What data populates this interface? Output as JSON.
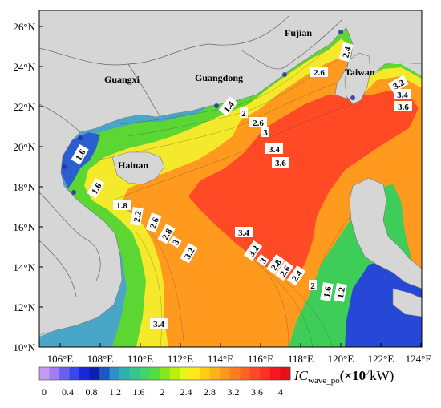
{
  "map": {
    "lat_ticks": [
      "10°N",
      "12°N",
      "14°N",
      "16°N",
      "18°N",
      "20°N",
      "22°N",
      "24°N",
      "26°N"
    ],
    "lon_ticks": [
      "106°E",
      "108°E",
      "110°E",
      "112°E",
      "114°E",
      "116°E",
      "118°E",
      "120°E",
      "122°E",
      "124°E"
    ],
    "place_labels": {
      "fujian": "Fujian",
      "guangxi": "Guangxi",
      "guangdong": "Guangdong",
      "taiwan": "Taiwan",
      "hainan": "Hainan"
    },
    "contour_labels": [
      "2.4",
      "2.6",
      "3.2",
      "3.4",
      "3.6",
      "1.4",
      "2",
      "2.6",
      "3",
      "3.4",
      "3.6",
      "1.6",
      "1.6",
      "1.8",
      "2.2",
      "2.6",
      "2.8",
      "3",
      "3.2",
      "3.4",
      "3.2",
      "3",
      "2.8",
      "2.6",
      "2.4",
      "2",
      "1.6",
      "1.2",
      "3.4"
    ]
  },
  "colorbar": {
    "ticks": [
      "0",
      "0.4",
      "0.8",
      "1.2",
      "1.6",
      "2",
      "2.4",
      "2.8",
      "3.2",
      "3.6",
      "4"
    ],
    "colors": [
      "#c39bf0",
      "#a27cf5",
      "#6b5ff2",
      "#3848ee",
      "#1726d8",
      "#0d1fb3",
      "#1c57c7",
      "#2f8fc8",
      "#2bb3b0",
      "#33c78c",
      "#3fd56a",
      "#52dc3f",
      "#86e61b",
      "#b9ef0c",
      "#e6f51a",
      "#ffe91a",
      "#ffcf17",
      "#ffb317",
      "#ff971a",
      "#ff7d1e",
      "#ff6322",
      "#ff4a25",
      "#ff2f26",
      "#f5161f",
      "#e3101a"
    ],
    "title_main": "IC",
    "title_sub": "wave_po",
    "title_unit_pre": "(×10",
    "title_unit_exp": "7",
    "title_unit_post": "kW)"
  }
}
